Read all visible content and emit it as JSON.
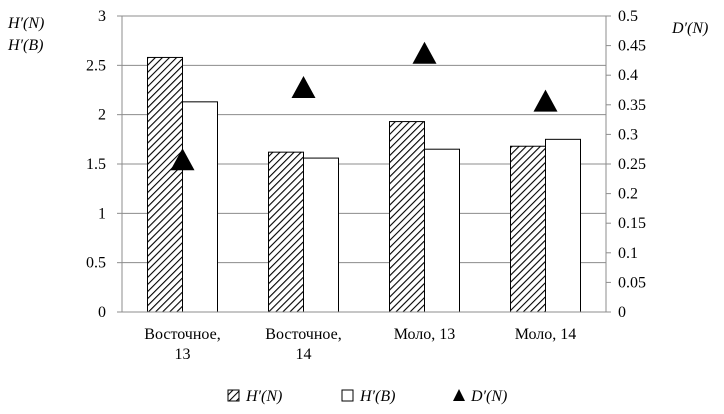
{
  "chart_data": {
    "type": "bar",
    "categories": [
      [
        "Восточное,",
        "13"
      ],
      [
        "Восточное,",
        "14"
      ],
      [
        "Моло, 13"
      ],
      [
        "Моло, 14"
      ]
    ],
    "series": [
      {
        "name": "H′(N)",
        "type": "bar",
        "axis": "left",
        "fill": "hatched",
        "values": [
          2.58,
          1.62,
          1.93,
          1.68
        ]
      },
      {
        "name": "H′(B)",
        "type": "bar",
        "axis": "left",
        "fill": "white",
        "values": [
          2.13,
          1.56,
          1.65,
          1.75
        ]
      },
      {
        "name": "D′(N)",
        "type": "marker",
        "marker": "triangle",
        "axis": "right",
        "values": [
          0.258,
          0.38,
          0.438,
          0.357
        ]
      }
    ],
    "left_axis": {
      "label_lines": [
        "H′(N)",
        "H′(B)"
      ],
      "range": [
        0,
        3
      ],
      "ticks": [
        0,
        0.5,
        1,
        1.5,
        2,
        2.5,
        3
      ],
      "tick_labels": [
        "0",
        "0.5",
        "1",
        "1.5",
        "2",
        "2.5",
        "3"
      ]
    },
    "right_axis": {
      "label": "D′(N)",
      "range": [
        0,
        0.5
      ],
      "ticks": [
        0,
        0.05,
        0.1,
        0.15,
        0.2,
        0.25,
        0.3,
        0.35,
        0.4,
        0.45,
        0.5
      ],
      "tick_labels": [
        "0",
        "0.05",
        "0.1",
        "0.15",
        "0.2",
        "0.25",
        "0.3",
        "0.35",
        "0.4",
        "0.45",
        "0.5"
      ]
    },
    "grid": true,
    "legend_position": "bottom",
    "colors": {
      "bar_outline": "#000000",
      "bar_white": "#ffffff",
      "marker": "#000000",
      "grid": "#8c8c8c"
    }
  }
}
